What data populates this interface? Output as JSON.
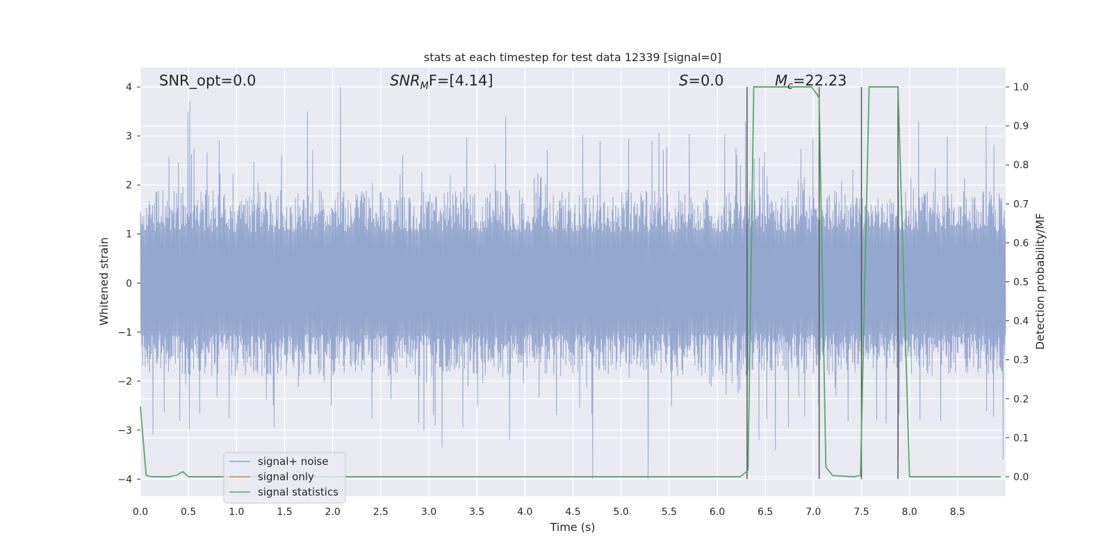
{
  "chart_data": {
    "type": "line",
    "title": "stats at each timestep for test data 12339 [signal=0]",
    "xlabel": "Time (s)",
    "ylabel_left": "Whitened strain",
    "ylabel_right": "Detection probability/MF",
    "xlim": [
      0.0,
      9.0
    ],
    "ylim_left": [
      -4.35,
      4.4
    ],
    "ylim_right": [
      -0.05,
      1.05
    ],
    "x_ticks": [
      "0.0",
      "0.5",
      "1.0",
      "1.5",
      "2.0",
      "2.5",
      "3.0",
      "3.5",
      "4.0",
      "4.5",
      "5.0",
      "5.5",
      "6.0",
      "6.5",
      "7.0",
      "7.5",
      "8.0",
      "8.5"
    ],
    "y_ticks_left": [
      "4",
      "3",
      "2",
      "1",
      "0",
      "−1",
      "−2",
      "−3",
      "−4"
    ],
    "y_ticks_right": [
      "1.0",
      "0.9",
      "0.8",
      "0.7",
      "0.6",
      "0.5",
      "0.4",
      "0.3",
      "0.2",
      "0.1",
      "0.0"
    ],
    "grid": true,
    "annotations": {
      "snr_opt": "SNR_opt=0.0",
      "snr_mf_sym": "SNR",
      "snr_mf_sub": "M",
      "snr_mf_rest": "F=[4.14]",
      "s_sym": "S",
      "s_rest": "=0.0",
      "mc_sym": "M",
      "mc_sub": "c",
      "mc_rest": "=22.23"
    },
    "legend": {
      "position": "lower-left",
      "entries": [
        {
          "label": "signal+ noise",
          "color": "#8fa3cc"
        },
        {
          "label": "signal only",
          "color": "#dd8452"
        },
        {
          "label": "signal statistics",
          "color": "#55a868"
        }
      ]
    },
    "series": [
      {
        "name": "signal+ noise",
        "kind": "noise",
        "color": "#8fa3cc",
        "envelope_upper": 1.9,
        "envelope_lower": -1.9,
        "max": 4.0,
        "min": -4.0,
        "notable_peaks": [
          [
            0.52,
            3.7
          ],
          [
            0.5,
            3.5
          ],
          [
            1.74,
            3.5
          ],
          [
            2.08,
            4.0
          ],
          [
            3.8,
            3.4
          ],
          [
            6.3,
            3.3
          ],
          [
            8.1,
            3.3
          ],
          [
            8.8,
            3.2
          ]
        ],
        "notable_troughs": [
          [
            0.13,
            -3.1
          ],
          [
            3.14,
            -3.35
          ],
          [
            3.84,
            -3.2
          ],
          [
            4.7,
            -4.0
          ],
          [
            5.28,
            -4.0
          ],
          [
            6.43,
            -3.2
          ],
          [
            6.6,
            -3.4
          ],
          [
            7.88,
            -3.6
          ],
          [
            8.97,
            -3.6
          ]
        ]
      },
      {
        "name": "signal statistics",
        "kind": "line",
        "color": "#55a868",
        "x": [
          0.0,
          0.06,
          0.12,
          0.3,
          0.38,
          0.44,
          0.5,
          6.24,
          6.32,
          6.38,
          6.98,
          7.04,
          7.06,
          7.13,
          7.2,
          7.42,
          7.49,
          7.58,
          7.88,
          8.0,
          8.95
        ],
        "y": [
          0.18,
          0.003,
          0.0,
          0.0,
          0.004,
          0.013,
          0.0,
          0.0,
          0.016,
          1.0,
          1.0,
          0.98,
          0.97,
          0.025,
          0.003,
          0.0,
          0.003,
          1.0,
          1.0,
          0.0,
          0.0
        ]
      }
    ],
    "vertical_lines_x": [
      6.31,
      7.06,
      7.5,
      7.88
    ]
  }
}
